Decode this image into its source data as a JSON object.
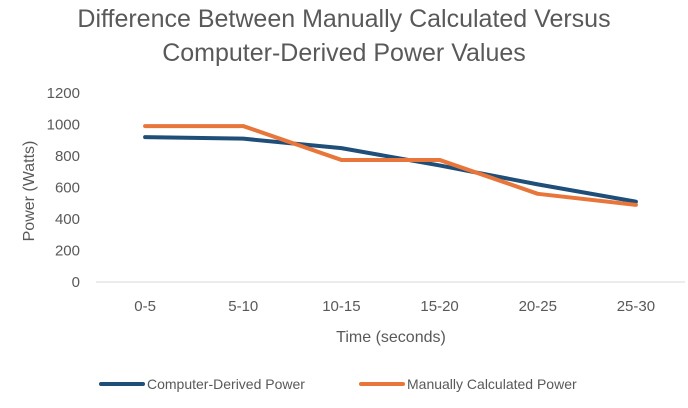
{
  "chart_data": {
    "type": "line",
    "title_lines": [
      "Difference Between Manually Calculated Versus",
      "Computer-Derived Power Values"
    ],
    "xlabel": "Time (seconds)",
    "ylabel": "Power (Watts)",
    "categories": [
      "0-5",
      "5-10",
      "10-15",
      "15-20",
      "20-25",
      "25-30"
    ],
    "y_ticks": [
      0,
      200,
      400,
      600,
      800,
      1000,
      1200
    ],
    "ylim": [
      0,
      1200
    ],
    "grid": false,
    "legend_position": "bottom",
    "series": [
      {
        "name": "Computer-Derived Power",
        "color": "#1f4e79",
        "values": [
          920,
          910,
          850,
          740,
          620,
          510
        ]
      },
      {
        "name": "Manually Calculated Power",
        "color": "#e8763b",
        "values": [
          990,
          990,
          775,
          775,
          560,
          490
        ]
      }
    ]
  }
}
